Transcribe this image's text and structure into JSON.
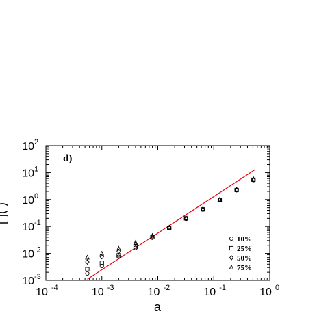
{
  "chart_data": {
    "type": "scatter",
    "panel_label": "d)",
    "xlabel": "a",
    "ylabel_partial": "[ ]( )",
    "xscale": "log",
    "yscale": "log",
    "xlim": [
      0.0001,
      1
    ],
    "ylim": [
      0.001,
      100
    ],
    "x_ticks": [
      {
        "base": "10",
        "exp": "-4"
      },
      {
        "base": "10",
        "exp": "-3"
      },
      {
        "base": "10",
        "exp": "-2"
      },
      {
        "base": "10",
        "exp": "-1"
      },
      {
        "base": "10",
        "exp": "0"
      }
    ],
    "y_ticks": [
      {
        "base": "10",
        "exp": "-3"
      },
      {
        "base": "10",
        "exp": "-2"
      },
      {
        "base": "10",
        "exp": "-1"
      },
      {
        "base": "10",
        "exp": "0"
      },
      {
        "base": "10",
        "exp": "1"
      },
      {
        "base": "10",
        "exp": "2"
      }
    ],
    "legend_position": "bottom-right",
    "fit_line": {
      "color": "#e8000b",
      "points": [
        [
          0.00055,
          0.0011
        ],
        [
          0.55,
          13
        ]
      ]
    },
    "series": [
      {
        "name": "10%",
        "marker": "circle",
        "points": [
          [
            0.00055,
            0.0018
          ],
          [
            0.001,
            0.0034
          ],
          [
            0.002,
            0.0075
          ],
          [
            0.004,
            0.016
          ],
          [
            0.008,
            0.038
          ],
          [
            0.016,
            0.085
          ],
          [
            0.032,
            0.19
          ],
          [
            0.064,
            0.42
          ],
          [
            0.128,
            0.95
          ],
          [
            0.256,
            2.2
          ],
          [
            0.512,
            5.2
          ]
        ]
      },
      {
        "name": "25%",
        "marker": "square",
        "points": [
          [
            0.00055,
            0.0026
          ],
          [
            0.001,
            0.0045
          ],
          [
            0.002,
            0.0085
          ],
          [
            0.004,
            0.018
          ],
          [
            0.008,
            0.04
          ],
          [
            0.016,
            0.088
          ],
          [
            0.032,
            0.2
          ],
          [
            0.064,
            0.43
          ],
          [
            0.128,
            0.97
          ],
          [
            0.256,
            2.25
          ],
          [
            0.512,
            5.4
          ]
        ]
      },
      {
        "name": "50%",
        "marker": "diamond",
        "points": [
          [
            0.00055,
            0.0048
          ],
          [
            0.001,
            0.0075
          ],
          [
            0.002,
            0.012
          ],
          [
            0.004,
            0.022
          ],
          [
            0.008,
            0.042
          ],
          [
            0.016,
            0.09
          ],
          [
            0.032,
            0.2
          ],
          [
            0.064,
            0.44
          ],
          [
            0.128,
            0.98
          ],
          [
            0.256,
            2.3
          ],
          [
            0.512,
            5.5
          ]
        ]
      },
      {
        "name": "75%",
        "marker": "triangle",
        "points": [
          [
            0.00055,
            0.007
          ],
          [
            0.001,
            0.0098
          ],
          [
            0.002,
            0.015
          ],
          [
            0.004,
            0.025
          ],
          [
            0.008,
            0.045
          ],
          [
            0.016,
            0.092
          ],
          [
            0.032,
            0.205
          ],
          [
            0.064,
            0.45
          ],
          [
            0.128,
            1.0
          ],
          [
            0.256,
            2.35
          ],
          [
            0.512,
            5.7
          ]
        ]
      }
    ]
  }
}
